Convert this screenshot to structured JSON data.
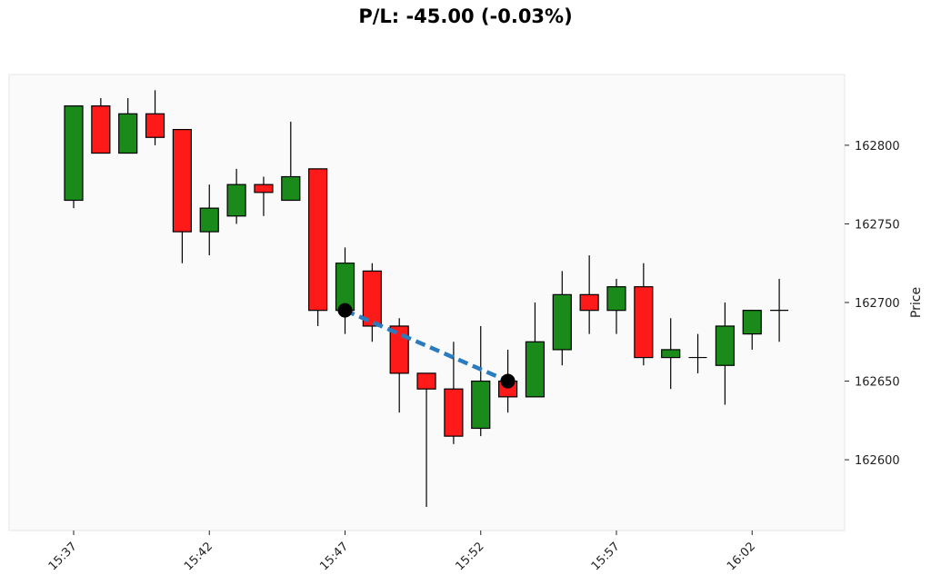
{
  "chart_data": {
    "type": "candlestick",
    "title": "P/L: -45.00 (-0.03%)",
    "ylabel": "Price",
    "xlabel": "",
    "ylim": [
      162555,
      162845
    ],
    "y_ticks": [
      162600,
      162650,
      162700,
      162750,
      162800
    ],
    "x_tick_labels": [
      "15:37",
      "15:42",
      "15:47",
      "15:52",
      "15:57",
      "16:02"
    ],
    "x_tick_indices": [
      0,
      5,
      10,
      15,
      20,
      25
    ],
    "grid": false,
    "colors": {
      "up": "#1a8a1a",
      "down": "#ff1a1a",
      "trade_line": "#2b7bbf",
      "marker": "#000000",
      "plot_bg": "#fafafa"
    },
    "candles": [
      {
        "time": "15:37",
        "open": 162765,
        "high": 162825,
        "low": 162760,
        "close": 162825
      },
      {
        "time": "15:38",
        "open": 162825,
        "high": 162830,
        "low": 162795,
        "close": 162795
      },
      {
        "time": "15:39",
        "open": 162795,
        "high": 162830,
        "low": 162795,
        "close": 162820
      },
      {
        "time": "15:40",
        "open": 162820,
        "high": 162835,
        "low": 162800,
        "close": 162805
      },
      {
        "time": "15:41",
        "open": 162810,
        "high": 162810,
        "low": 162725,
        "close": 162745
      },
      {
        "time": "15:42",
        "open": 162745,
        "high": 162775,
        "low": 162730,
        "close": 162760
      },
      {
        "time": "15:43",
        "open": 162755,
        "high": 162785,
        "low": 162750,
        "close": 162775
      },
      {
        "time": "15:44",
        "open": 162775,
        "high": 162780,
        "low": 162755,
        "close": 162770
      },
      {
        "time": "15:45",
        "open": 162765,
        "high": 162815,
        "low": 162765,
        "close": 162780
      },
      {
        "time": "15:46",
        "open": 162785,
        "high": 162785,
        "low": 162685,
        "close": 162695
      },
      {
        "time": "15:47",
        "open": 162695,
        "high": 162735,
        "low": 162680,
        "close": 162725
      },
      {
        "time": "15:48",
        "open": 162720,
        "high": 162725,
        "low": 162675,
        "close": 162685
      },
      {
        "time": "15:49",
        "open": 162685,
        "high": 162690,
        "low": 162630,
        "close": 162655
      },
      {
        "time": "15:50",
        "open": 162655,
        "high": 162655,
        "low": 162570,
        "close": 162645
      },
      {
        "time": "15:51",
        "open": 162645,
        "high": 162675,
        "low": 162610,
        "close": 162615
      },
      {
        "time": "15:52",
        "open": 162620,
        "high": 162685,
        "low": 162615,
        "close": 162650
      },
      {
        "time": "15:53",
        "open": 162650,
        "high": 162670,
        "low": 162630,
        "close": 162640
      },
      {
        "time": "15:54",
        "open": 162640,
        "high": 162700,
        "low": 162640,
        "close": 162675
      },
      {
        "time": "15:55",
        "open": 162670,
        "high": 162720,
        "low": 162660,
        "close": 162705
      },
      {
        "time": "15:56",
        "open": 162705,
        "high": 162730,
        "low": 162680,
        "close": 162695
      },
      {
        "time": "15:57",
        "open": 162695,
        "high": 162715,
        "low": 162680,
        "close": 162710
      },
      {
        "time": "15:58",
        "open": 162710,
        "high": 162725,
        "low": 162660,
        "close": 162665
      },
      {
        "time": "15:59",
        "open": 162665,
        "high": 162690,
        "low": 162645,
        "close": 162670
      },
      {
        "time": "16:00",
        "open": 162665,
        "high": 162680,
        "low": 162655,
        "close": 162665
      },
      {
        "time": "16:01",
        "open": 162660,
        "high": 162700,
        "low": 162635,
        "close": 162685
      },
      {
        "time": "16:02",
        "open": 162680,
        "high": 162695,
        "low": 162670,
        "close": 162695
      },
      {
        "time": "16:03",
        "open": 162695,
        "high": 162715,
        "low": 162675,
        "close": 162695
      }
    ],
    "trade": {
      "entry": {
        "index": 10,
        "price": 162695
      },
      "exit": {
        "index": 16,
        "price": 162650
      }
    }
  }
}
